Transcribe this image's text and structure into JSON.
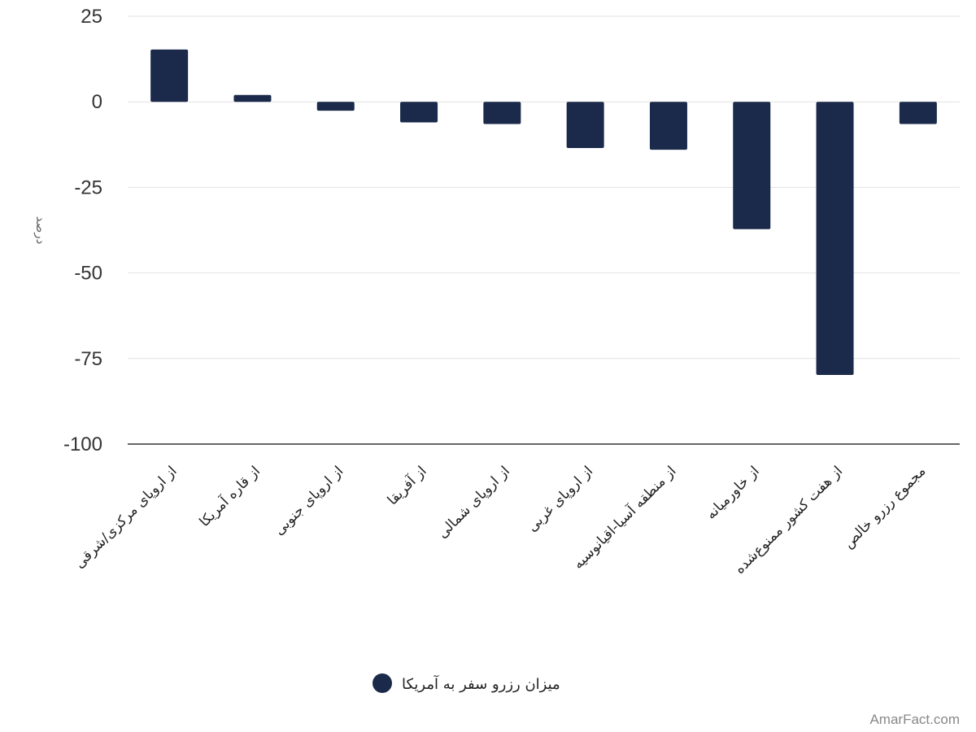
{
  "chart_data": {
    "type": "bar",
    "categories": [
      "از اروپای مرکزی/شرقی",
      "از قاره آمریکا",
      "از اروپای جنوبی",
      "از آفریقا",
      "از اروپای شمالی",
      "از اروپای غربی",
      "از منطقه آسیا-اقیانوسیه",
      "از خاورمیانه",
      "از هفت کشور ممنوع‌شده",
      "مجموع رزرو خالص"
    ],
    "series": [
      {
        "name": "میزان رزرو سفر به آمریکا",
        "values": [
          15.3,
          2,
          -2.6,
          -6,
          -6.5,
          -13.5,
          -14,
          -37.2,
          -79.8,
          -6.5
        ],
        "color": "#1b2a4a"
      }
    ],
    "ylabel": "درصد",
    "xlabel": "",
    "ylim": [
      -100,
      25
    ],
    "yticks": [
      25,
      0,
      -25,
      -50,
      -75,
      -100
    ],
    "grid": true,
    "legend_position": "bottom-center"
  },
  "watermark": "AmarFact.com"
}
